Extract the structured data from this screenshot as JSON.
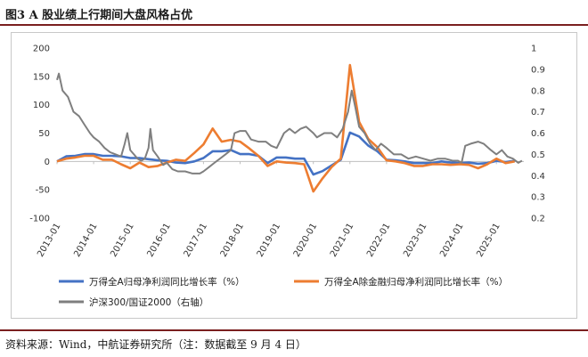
{
  "figure": {
    "title": "图3 A 股业绩上行期间大盘风格占优",
    "source": "资料来源：Wind，中航证券研究所（注：数据截至 9 月 4 日）"
  },
  "chart_data": {
    "type": "line",
    "title": "图3 A 股业绩上行期间大盘风格占优",
    "x_labels": [
      "2013-01",
      "2014-01",
      "2015-01",
      "2016-01",
      "2017-01",
      "2018-01",
      "2019-01",
      "2020-01",
      "2021-01",
      "2022-01",
      "2023-01",
      "2024-01",
      "2025-01"
    ],
    "y_left": {
      "range": [
        -100,
        200
      ],
      "ticks": [
        200,
        150,
        100,
        50,
        0,
        -50,
        -100
      ]
    },
    "y_right": {
      "range": [
        0.2,
        1.0
      ],
      "ticks": [
        1,
        0.9,
        0.8,
        0.7,
        0.6,
        0.5,
        0.4,
        0.3,
        0.2
      ],
      "label": "右轴"
    },
    "series": [
      {
        "name": "万得全A归母净利润同比增长率（%）",
        "color": "#4472c4",
        "axis": "left",
        "points": [
          [
            2013.0,
            0
          ],
          [
            2013.25,
            9
          ],
          [
            2013.5,
            10
          ],
          [
            2013.75,
            13
          ],
          [
            2014.0,
            13
          ],
          [
            2014.25,
            10
          ],
          [
            2014.5,
            10
          ],
          [
            2014.75,
            9
          ],
          [
            2015.0,
            6
          ],
          [
            2015.25,
            6
          ],
          [
            2015.5,
            4
          ],
          [
            2015.75,
            2
          ],
          [
            2016.0,
            1
          ],
          [
            2016.25,
            -2
          ],
          [
            2016.5,
            -3
          ],
          [
            2016.75,
            0
          ],
          [
            2017.0,
            6
          ],
          [
            2017.25,
            18
          ],
          [
            2017.5,
            18
          ],
          [
            2017.75,
            20
          ],
          [
            2018.0,
            13
          ],
          [
            2018.25,
            13
          ],
          [
            2018.5,
            10
          ],
          [
            2018.75,
            -3
          ],
          [
            2019.0,
            7
          ],
          [
            2019.25,
            7
          ],
          [
            2019.5,
            5
          ],
          [
            2019.75,
            5
          ],
          [
            2020.0,
            -23
          ],
          [
            2020.25,
            -17
          ],
          [
            2020.5,
            -7
          ],
          [
            2020.75,
            3
          ],
          [
            2021.0,
            51
          ],
          [
            2021.25,
            44
          ],
          [
            2021.5,
            28
          ],
          [
            2021.75,
            18
          ],
          [
            2022.0,
            3
          ],
          [
            2022.25,
            2
          ],
          [
            2022.5,
            0
          ],
          [
            2022.75,
            -3
          ],
          [
            2023.0,
            -3
          ],
          [
            2023.25,
            -3
          ],
          [
            2023.5,
            0
          ],
          [
            2023.75,
            -2
          ],
          [
            2024.0,
            -3
          ],
          [
            2024.25,
            -2
          ],
          [
            2024.5,
            -4
          ],
          [
            2024.75,
            -3
          ],
          [
            2025.0,
            1
          ],
          [
            2025.25,
            -1
          ],
          [
            2025.5,
            1
          ]
        ]
      },
      {
        "name": "万得全A除金融归母净利润同比增长率（%）",
        "color": "#ed7d31",
        "axis": "left",
        "points": [
          [
            2013.0,
            0
          ],
          [
            2013.25,
            5
          ],
          [
            2013.5,
            7
          ],
          [
            2013.75,
            10
          ],
          [
            2014.0,
            10
          ],
          [
            2014.25,
            3
          ],
          [
            2014.5,
            3
          ],
          [
            2014.75,
            -5
          ],
          [
            2015.0,
            -12
          ],
          [
            2015.25,
            -2
          ],
          [
            2015.5,
            -10
          ],
          [
            2015.75,
            -8
          ],
          [
            2016.0,
            -2
          ],
          [
            2016.25,
            3
          ],
          [
            2016.5,
            1
          ],
          [
            2016.75,
            15
          ],
          [
            2017.0,
            30
          ],
          [
            2017.25,
            58
          ],
          [
            2017.5,
            35
          ],
          [
            2017.75,
            38
          ],
          [
            2018.0,
            35
          ],
          [
            2018.25,
            23
          ],
          [
            2018.5,
            10
          ],
          [
            2018.75,
            -8
          ],
          [
            2019.0,
            0
          ],
          [
            2019.25,
            -2
          ],
          [
            2019.5,
            -3
          ],
          [
            2019.75,
            -5
          ],
          [
            2020.0,
            -53
          ],
          [
            2020.25,
            -30
          ],
          [
            2020.5,
            -10
          ],
          [
            2020.75,
            5
          ],
          [
            2021.0,
            170
          ],
          [
            2021.25,
            70
          ],
          [
            2021.5,
            40
          ],
          [
            2021.75,
            25
          ],
          [
            2022.0,
            2
          ],
          [
            2022.25,
            0
          ],
          [
            2022.5,
            -3
          ],
          [
            2022.75,
            -8
          ],
          [
            2023.0,
            -8
          ],
          [
            2023.25,
            -5
          ],
          [
            2023.5,
            -5
          ],
          [
            2023.75,
            -6
          ],
          [
            2024.0,
            -5
          ],
          [
            2024.25,
            -6
          ],
          [
            2024.5,
            -12
          ],
          [
            2024.75,
            -5
          ],
          [
            2025.0,
            5
          ],
          [
            2025.25,
            -3
          ],
          [
            2025.5,
            0
          ]
        ]
      },
      {
        "name": "沪深300/国证2000（右轴）",
        "color": "#7f7f7f",
        "axis": "right",
        "points": [
          [
            2013.0,
            0.85
          ],
          [
            2013.05,
            0.88
          ],
          [
            2013.15,
            0.8
          ],
          [
            2013.3,
            0.77
          ],
          [
            2013.45,
            0.7
          ],
          [
            2013.6,
            0.68
          ],
          [
            2013.75,
            0.64
          ],
          [
            2013.9,
            0.6
          ],
          [
            2014.0,
            0.58
          ],
          [
            2014.15,
            0.56
          ],
          [
            2014.3,
            0.53
          ],
          [
            2014.45,
            0.51
          ],
          [
            2014.6,
            0.5
          ],
          [
            2014.75,
            0.49
          ],
          [
            2014.85,
            0.55
          ],
          [
            2014.92,
            0.6
          ],
          [
            2015.0,
            0.52
          ],
          [
            2015.1,
            0.5
          ],
          [
            2015.2,
            0.48
          ],
          [
            2015.3,
            0.47
          ],
          [
            2015.4,
            0.48
          ],
          [
            2015.5,
            0.53
          ],
          [
            2015.55,
            0.62
          ],
          [
            2015.62,
            0.52
          ],
          [
            2015.75,
            0.49
          ],
          [
            2015.9,
            0.45
          ],
          [
            2016.0,
            0.46
          ],
          [
            2016.15,
            0.43
          ],
          [
            2016.3,
            0.42
          ],
          [
            2016.5,
            0.42
          ],
          [
            2016.7,
            0.41
          ],
          [
            2016.9,
            0.41
          ],
          [
            2017.0,
            0.42
          ],
          [
            2017.15,
            0.44
          ],
          [
            2017.3,
            0.46
          ],
          [
            2017.45,
            0.48
          ],
          [
            2017.6,
            0.5
          ],
          [
            2017.75,
            0.52
          ],
          [
            2017.85,
            0.6
          ],
          [
            2018.0,
            0.61
          ],
          [
            2018.15,
            0.61
          ],
          [
            2018.3,
            0.57
          ],
          [
            2018.5,
            0.56
          ],
          [
            2018.7,
            0.56
          ],
          [
            2018.85,
            0.54
          ],
          [
            2019.0,
            0.53
          ],
          [
            2019.2,
            0.6
          ],
          [
            2019.35,
            0.62
          ],
          [
            2019.5,
            0.6
          ],
          [
            2019.65,
            0.62
          ],
          [
            2019.8,
            0.63
          ],
          [
            2020.0,
            0.6
          ],
          [
            2020.1,
            0.58
          ],
          [
            2020.3,
            0.6
          ],
          [
            2020.5,
            0.6
          ],
          [
            2020.65,
            0.58
          ],
          [
            2020.8,
            0.62
          ],
          [
            2020.95,
            0.7
          ],
          [
            2021.05,
            0.8
          ],
          [
            2021.15,
            0.72
          ],
          [
            2021.25,
            0.63
          ],
          [
            2021.4,
            0.6
          ],
          [
            2021.55,
            0.55
          ],
          [
            2021.7,
            0.52
          ],
          [
            2021.85,
            0.55
          ],
          [
            2022.0,
            0.53
          ],
          [
            2022.2,
            0.5
          ],
          [
            2022.4,
            0.5
          ],
          [
            2022.6,
            0.48
          ],
          [
            2022.8,
            0.49
          ],
          [
            2023.0,
            0.48
          ],
          [
            2023.2,
            0.47
          ],
          [
            2023.4,
            0.48
          ],
          [
            2023.6,
            0.48
          ],
          [
            2023.8,
            0.47
          ],
          [
            2023.95,
            0.47
          ],
          [
            2024.05,
            0.46
          ],
          [
            2024.15,
            0.54
          ],
          [
            2024.3,
            0.55
          ],
          [
            2024.5,
            0.56
          ],
          [
            2024.65,
            0.55
          ],
          [
            2024.85,
            0.52
          ],
          [
            2025.0,
            0.5
          ],
          [
            2025.15,
            0.52
          ],
          [
            2025.3,
            0.49
          ],
          [
            2025.45,
            0.48
          ],
          [
            2025.6,
            0.46
          ],
          [
            2025.7,
            0.47
          ]
        ]
      }
    ],
    "legend": [
      "万得全A归母净利润同比增长率（%）",
      "万得全A除金融归母净利润同比增长率（%）",
      "沪深300/国证2000（右轴）"
    ]
  }
}
